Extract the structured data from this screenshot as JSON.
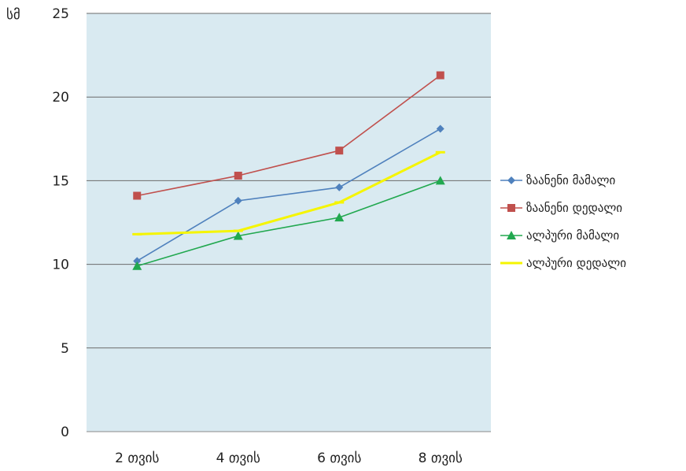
{
  "chart_data": {
    "type": "line",
    "unit_label": "სმ",
    "categories": [
      "2 თვის",
      "4 თვის",
      "6 თვის",
      "8 თვის"
    ],
    "ylim": [
      0,
      25
    ],
    "yticks": [
      0,
      5,
      10,
      15,
      20,
      25
    ],
    "grid": true,
    "plot_background": "#d9eaf1",
    "legend_position": "right",
    "series": [
      {
        "name": "ზაანენი მამალი",
        "values": [
          10.2,
          13.8,
          14.6,
          18.1
        ],
        "color": "#4f81bd",
        "marker": "diamond"
      },
      {
        "name": "ზაანენი დედალი",
        "values": [
          14.1,
          15.3,
          16.8,
          21.3
        ],
        "color": "#c0504d",
        "marker": "square"
      },
      {
        "name": "ალპური მამალი",
        "values": [
          9.9,
          11.7,
          12.8,
          15.0
        ],
        "color": "#21a84f",
        "marker": "triangle"
      },
      {
        "name": "ალპური დედალი",
        "values": [
          11.8,
          12.0,
          13.7,
          16.7
        ],
        "color": "#f5f500",
        "marker": "line"
      }
    ]
  }
}
